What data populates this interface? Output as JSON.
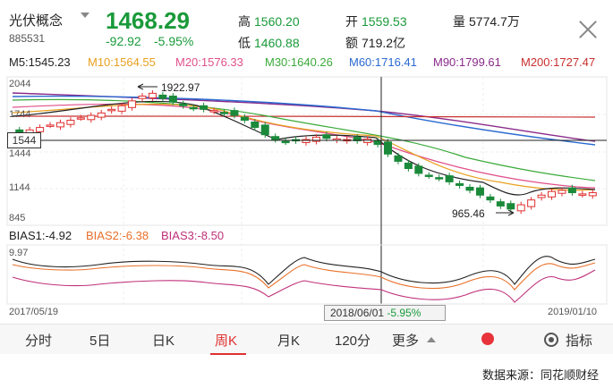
{
  "header": {
    "name": "光伏概念",
    "code": "885531",
    "price": "1468.29",
    "change": "-92.92",
    "change_pct": "-5.95%",
    "high_label": "高",
    "high": "1560.20",
    "low_label": "低",
    "low": "1460.88",
    "open_label": "开",
    "open": "1559.53",
    "amount_label": "额",
    "amount": "719.2亿",
    "volume_label": "量",
    "volume": "5774.7万"
  },
  "ma": [
    {
      "text": "M5:1545.23",
      "color": "#222222"
    },
    {
      "text": "M10:1564.55",
      "color": "#e8a020"
    },
    {
      "text": "M20:1576.33",
      "color": "#e0508a"
    },
    {
      "text": "M30:1640.26",
      "color": "#3aaa3a"
    },
    {
      "text": "M60:1716.41",
      "color": "#2a6ad0"
    },
    {
      "text": "M90:1799.61",
      "color": "#8a2a8a"
    },
    {
      "text": "M200:1727.47",
      "color": "#c83030"
    }
  ],
  "axis": {
    "y_ticks": [
      "2044",
      "1744",
      "1444",
      "1144",
      "845"
    ],
    "crosshair_value": "1544",
    "max_annotation": "1922.97",
    "min_annotation": "965.46",
    "bias_top": "9.97",
    "date_start": "2017/05/19",
    "date_end": "2019/01/10",
    "crosshair_date": "2018/06/01",
    "crosshair_pct": "-5.95%"
  },
  "bias": [
    {
      "text": "BIAS1:-4.92",
      "color": "#222222"
    },
    {
      "text": "BIAS2:-6.38",
      "color": "#e8702a"
    },
    {
      "text": "BIAS3:-8.50",
      "color": "#c0307a"
    }
  ],
  "tabs": [
    {
      "label": "分时"
    },
    {
      "label": "5日"
    },
    {
      "label": "日K"
    },
    {
      "label": "周K"
    },
    {
      "label": "月K"
    },
    {
      "label": "120分"
    },
    {
      "label": "更多"
    },
    {
      "label": "指标"
    }
  ],
  "active_tab": "周K",
  "footer": "数据来源：同花顺财经",
  "chart_data": {
    "type": "candlestick",
    "ylim": [
      845,
      2044
    ],
    "series_close_estimate": [
      1600,
      1620,
      1640,
      1660,
      1680,
      1700,
      1720,
      1740,
      1760,
      1790,
      1820,
      1860,
      1900,
      1923,
      1880,
      1850,
      1820,
      1800,
      1790,
      1780,
      1760,
      1740,
      1700,
      1640,
      1580,
      1540,
      1520,
      1530,
      1540,
      1560,
      1550,
      1545,
      1540,
      1530,
      1544,
      1500,
      1420,
      1360,
      1300,
      1260,
      1240,
      1220,
      1190,
      1160,
      1120,
      1080,
      1040,
      990,
      965,
      1000,
      1040,
      1080,
      1110,
      1120,
      1100,
      1090,
      1100
    ]
  }
}
